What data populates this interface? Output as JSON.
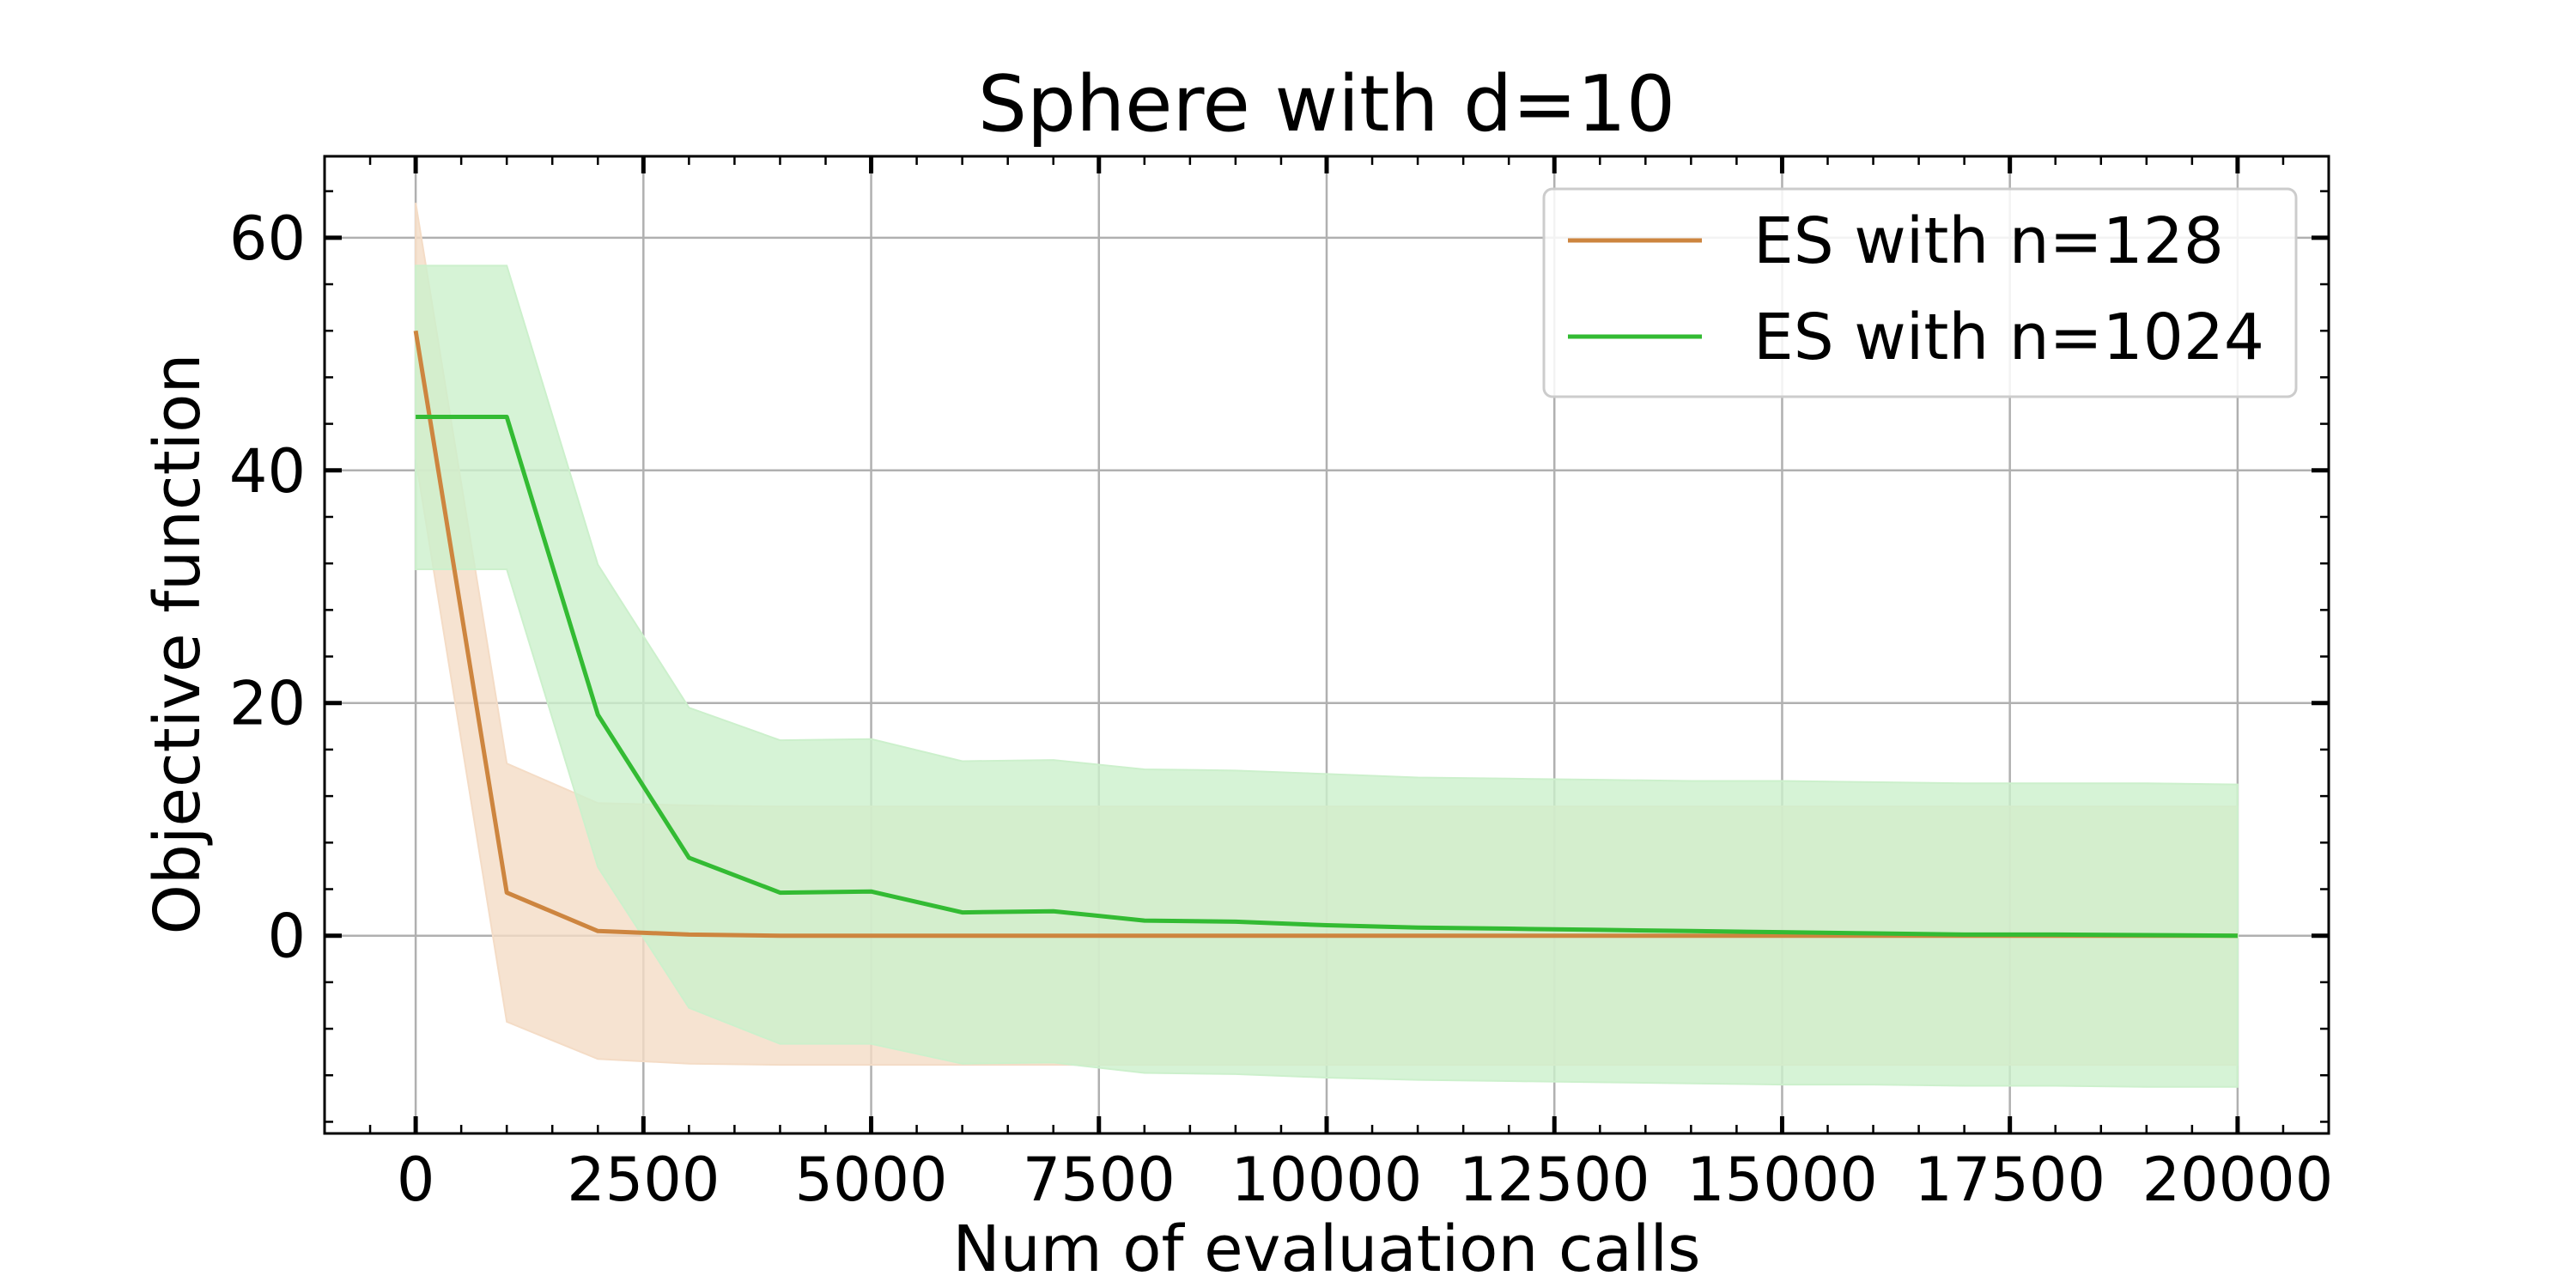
{
  "chart_data": {
    "type": "line",
    "title": "Sphere with d=10",
    "xlabel": "Num of evaluation calls",
    "ylabel": "Objective function",
    "xlim": [
      -1000,
      21000
    ],
    "ylim": [
      -17,
      67
    ],
    "xticks": [
      0,
      2500,
      5000,
      7500,
      10000,
      12500,
      15000,
      17500,
      20000
    ],
    "xtick_labels": [
      "0",
      "2500",
      "5000",
      "7500",
      "10000",
      "12500",
      "15000",
      "17500",
      "20000"
    ],
    "yticks": [
      0,
      20,
      40,
      60
    ],
    "ytick_labels": [
      "0",
      "20",
      "40",
      "60"
    ],
    "grid": true,
    "legend_position": "top-right",
    "series": [
      {
        "name": "ES with n=128",
        "color": "#cd853f",
        "fill_color": "#f4dcc6",
        "x": [
          0,
          1000,
          2000,
          3000,
          4000,
          5000,
          6000,
          7000,
          8000,
          9000,
          10000,
          11000,
          12000,
          13000,
          14000,
          15000,
          16000,
          17000,
          18000,
          19000,
          20000
        ],
        "mean": [
          52,
          3.7,
          0.4,
          0.1,
          0,
          0,
          0,
          0,
          0,
          0,
          0,
          0,
          0,
          0,
          0,
          0,
          0,
          0,
          0,
          0,
          0
        ],
        "upper": [
          63,
          14.8,
          11.4,
          11.2,
          11.1,
          11.1,
          11.1,
          11.1,
          11.1,
          11.1,
          11.1,
          11.1,
          11.1,
          11.1,
          11.1,
          11.1,
          11.1,
          11.1,
          11.1,
          11.1,
          11.1
        ],
        "lower": [
          41,
          -7.4,
          -10.6,
          -11,
          -11.1,
          -11.1,
          -11.1,
          -11.1,
          -11.1,
          -11.1,
          -11.1,
          -11.1,
          -11.1,
          -11.1,
          -11.1,
          -11.1,
          -11.1,
          -11.1,
          -11.1,
          -11.1,
          -11.1
        ]
      },
      {
        "name": "ES with n=1024",
        "color": "#33bb33",
        "fill_color": "#ccf0cc",
        "x": [
          0,
          1000,
          2000,
          3000,
          4000,
          5000,
          6000,
          7000,
          8000,
          9000,
          10000,
          11000,
          12000,
          13000,
          14000,
          15000,
          16000,
          17000,
          18000,
          19000,
          20000
        ],
        "mean": [
          44.6,
          44.6,
          19,
          6.7,
          3.7,
          3.8,
          2,
          2.1,
          1.3,
          1.2,
          0.9,
          0.7,
          0.6,
          0.5,
          0.4,
          0.3,
          0.2,
          0.1,
          0.1,
          0.05,
          0
        ],
        "upper": [
          57.6,
          57.6,
          31.9,
          19.6,
          16.8,
          16.9,
          15,
          15.1,
          14.3,
          14.2,
          13.9,
          13.6,
          13.5,
          13.4,
          13.3,
          13.3,
          13.2,
          13.1,
          13.1,
          13.1,
          13
        ],
        "lower": [
          31.5,
          31.5,
          5.9,
          -6.2,
          -9.3,
          -9.3,
          -11,
          -10.9,
          -11.8,
          -11.9,
          -12.2,
          -12.4,
          -12.5,
          -12.6,
          -12.7,
          -12.8,
          -12.8,
          -12.9,
          -12.9,
          -13,
          -13
        ]
      }
    ]
  }
}
